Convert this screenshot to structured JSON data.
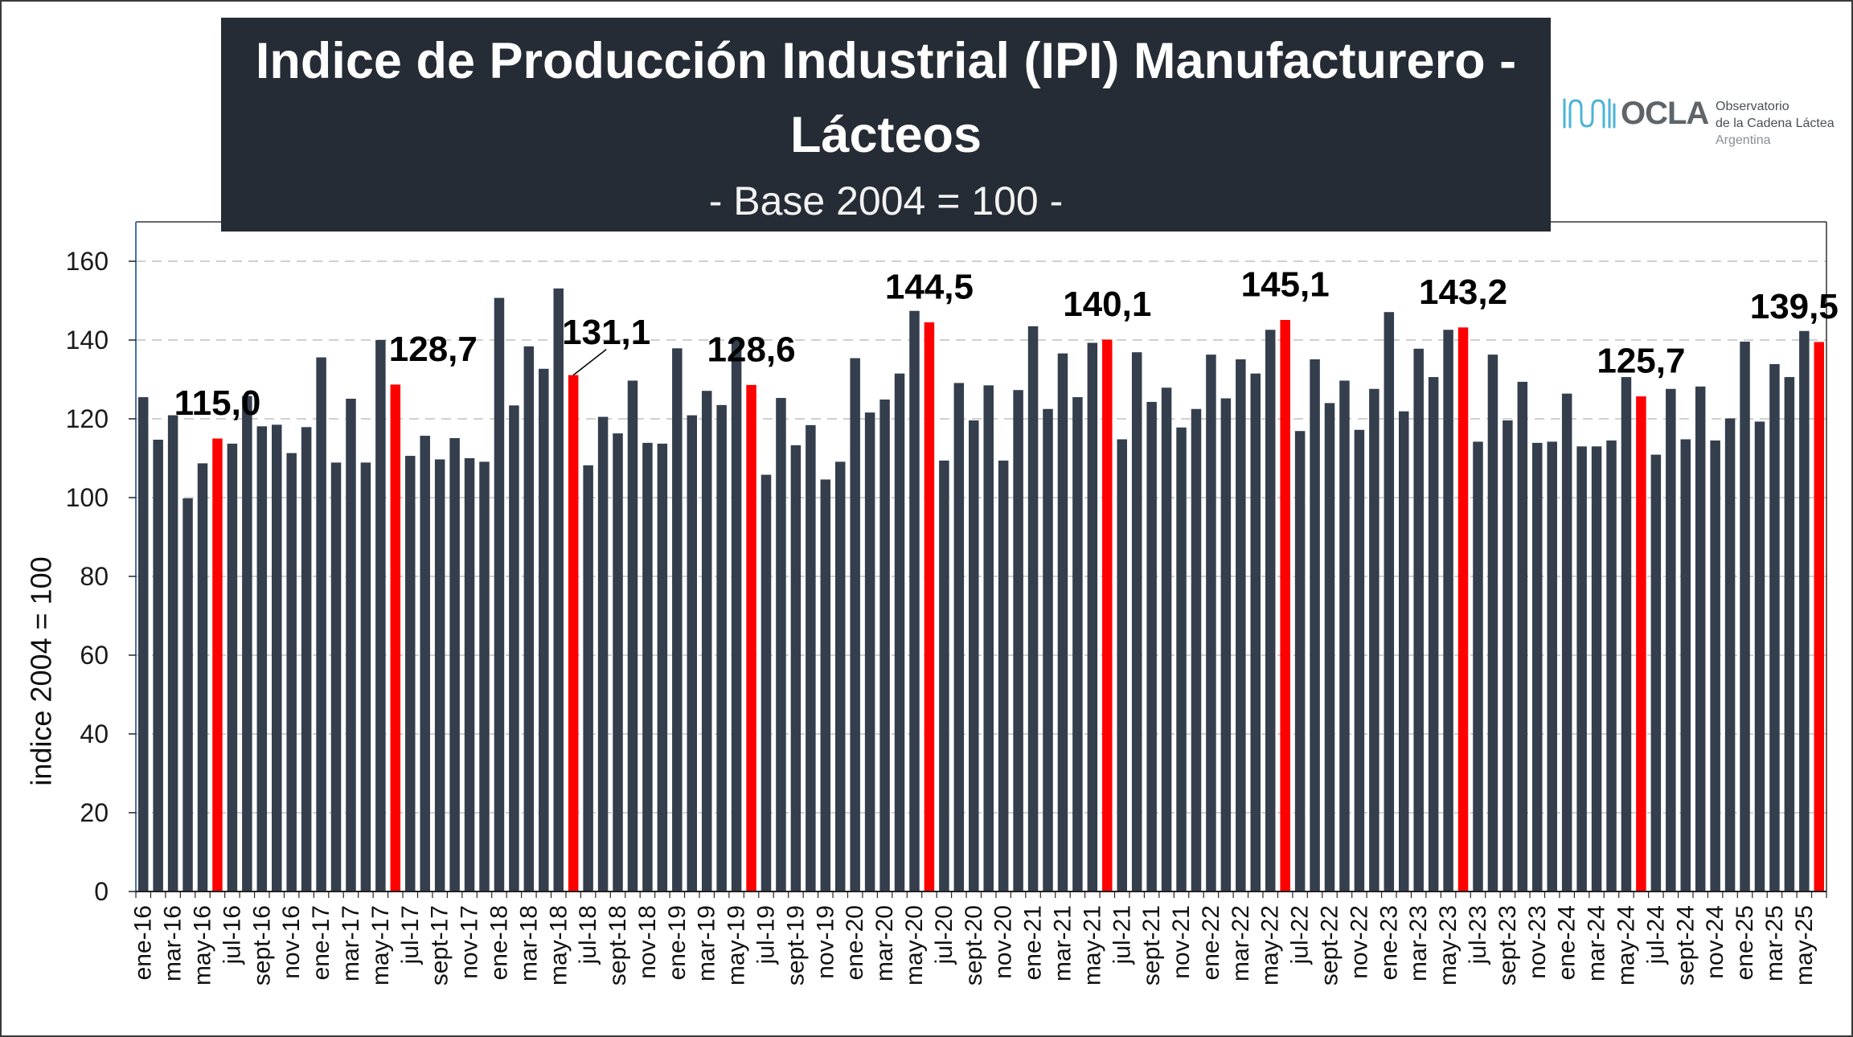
{
  "logo": {
    "icon": "ocla-wave-icon",
    "mark": "OCLA",
    "line1": "Observatorio",
    "line2": "de la Cadena Láctea",
    "line3": "Argentina"
  },
  "colors": {
    "bar": "#343E4D",
    "title_bg": "#262C35",
    "grid": "#D0D0D0",
    "logo_icon": "#4BB3D8",
    "logo_text": "#5F6468"
  },
  "chart_data": {
    "type": "bar",
    "title": "Indice de Producción Industrial (IPI) Manufacturero - Lácteos",
    "subtitle": "- Base 2004 = 100 -",
    "xlabel": "",
    "ylabel": "indice 2004 = 100",
    "ylim": [
      0,
      170
    ],
    "yticks": [
      0,
      20,
      40,
      60,
      80,
      100,
      120,
      140,
      160
    ],
    "grid": true,
    "legend": "none",
    "categories": [
      "ene-16",
      "",
      "mar-16",
      "",
      "may-16",
      "",
      "jul-16",
      "",
      "sept-16",
      "",
      "nov-16",
      "",
      "ene-17",
      "",
      "mar-17",
      "",
      "may-17",
      "",
      "jul-17",
      "",
      "sept-17",
      "",
      "nov-17",
      "",
      "ene-18",
      "",
      "mar-18",
      "",
      "may-18",
      "",
      "jul-18",
      "",
      "sept-18",
      "",
      "nov-18",
      "",
      "ene-19",
      "",
      "mar-19",
      "",
      "may-19",
      "",
      "jul-19",
      "",
      "sept-19",
      "",
      "nov-19",
      "",
      "ene-20",
      "",
      "mar-20",
      "",
      "may-20",
      "",
      "jul-20",
      "",
      "sept-20",
      "",
      "nov-20",
      "",
      "ene-21",
      "",
      "mar-21",
      "",
      "may-21",
      "",
      "jul-21",
      "",
      "sept-21",
      "",
      "nov-21",
      "",
      "ene-22",
      "",
      "mar-22",
      "",
      "may-22",
      "",
      "jul-22",
      "",
      "sept-22",
      "",
      "nov-22",
      "",
      "ene-23",
      "",
      "mar-23",
      "",
      "may-23",
      "",
      "jul-23",
      "",
      "sept-23",
      "",
      "nov-23",
      "",
      "ene-24",
      "",
      "mar-24",
      "",
      "may-24",
      "",
      "jul-24",
      "",
      "sept-24",
      "",
      "nov-24",
      "",
      "ene-25",
      "",
      "mar-25",
      "",
      "may-25",
      ""
    ],
    "series": [
      {
        "values": [
          125.5,
          114.7,
          120.9,
          99.8,
          108.7,
          115.0,
          113.7,
          125.8,
          118.1,
          118.5,
          111.3,
          117.9,
          135.6,
          108.9,
          125.1,
          108.9,
          140.0,
          128.7,
          110.6,
          115.7,
          109.7,
          115.1,
          110.0,
          109.1,
          150.7,
          123.4,
          138.4,
          132.7,
          153.1,
          131.1,
          108.2,
          120.5,
          116.3,
          129.7,
          113.9,
          113.7,
          137.9,
          120.9,
          127.1,
          123.5,
          139.8,
          128.6,
          105.8,
          125.3,
          113.3,
          118.4,
          104.6,
          109.1,
          135.4,
          121.6,
          124.9,
          131.5,
          147.4,
          144.5,
          109.4,
          129.1,
          119.6,
          128.5,
          109.4,
          127.3,
          143.5,
          122.5,
          136.6,
          125.5,
          139.3,
          140.1,
          114.8,
          136.9,
          124.3,
          127.9,
          117.8,
          122.5,
          136.3,
          125.2,
          135.1,
          131.5,
          142.6,
          145.1,
          116.9,
          135.1,
          124.0,
          129.7,
          117.2,
          127.6,
          147.1,
          121.9,
          137.8,
          130.6,
          142.6,
          143.2,
          114.2,
          136.3,
          119.6,
          129.4,
          113.9,
          114.2,
          126.4,
          113.0,
          113.0,
          114.5,
          130.6,
          125.7,
          110.9,
          127.6,
          114.8,
          128.2,
          114.5,
          120.1,
          139.6,
          119.3,
          133.9,
          130.6,
          142.3,
          139.5
        ]
      }
    ],
    "highlight": {
      "color": "#FF0000",
      "indices": [
        5,
        17,
        29,
        41,
        53,
        65,
        77,
        89,
        101,
        113
      ]
    },
    "data_labels": [
      {
        "index": 5,
        "text": "115,0"
      },
      {
        "index": 17,
        "text": "128,7"
      },
      {
        "index": 29,
        "text": "131,1"
      },
      {
        "index": 41,
        "text": "128,6"
      },
      {
        "index": 53,
        "text": "144,5"
      },
      {
        "index": 65,
        "text": "140,1"
      },
      {
        "index": 77,
        "text": "145,1"
      },
      {
        "index": 89,
        "text": "143,2"
      },
      {
        "index": 101,
        "text": "125,7"
      },
      {
        "index": 113,
        "text": "139,5"
      }
    ]
  }
}
